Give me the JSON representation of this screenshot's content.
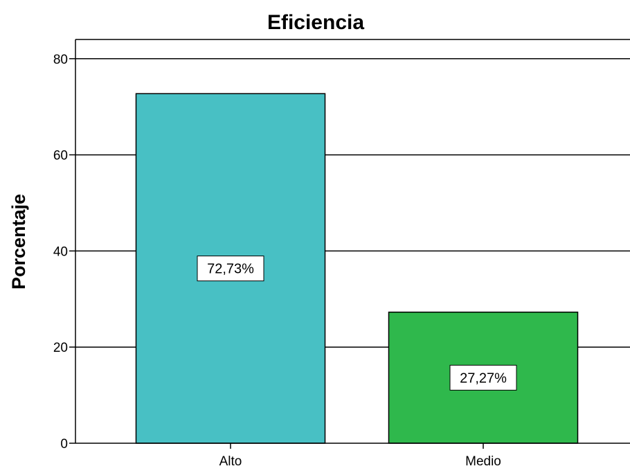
{
  "chart_data": {
    "type": "bar",
    "title": "Eficiencia",
    "xlabel": "",
    "ylabel": "Porcentaje",
    "categories": [
      "Alto",
      "Medio"
    ],
    "values": [
      72.73,
      27.27
    ],
    "data_labels": [
      "72,73%",
      "27,27%"
    ],
    "colors": [
      "#48c0c4",
      "#2fb84c"
    ],
    "ylim": [
      0,
      84
    ],
    "yticks": [
      0,
      20,
      40,
      60,
      80
    ],
    "grid": true,
    "legend": "none"
  }
}
